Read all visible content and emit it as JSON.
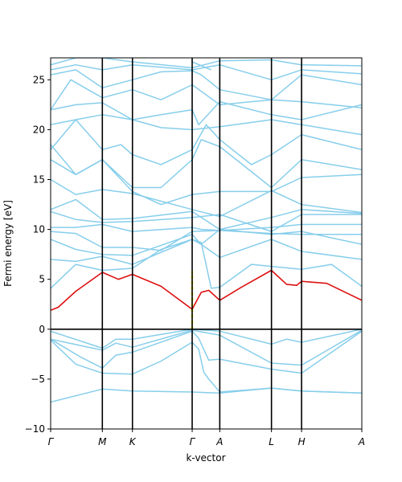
{
  "chart_data": {
    "type": "line",
    "title": "",
    "xlabel": "k-vector",
    "ylabel": "Fermi energy [eV]",
    "ylim": [
      -10,
      27.2
    ],
    "yticks": [
      -10,
      -5,
      0,
      5,
      10,
      15,
      20,
      25
    ],
    "xlim": [
      0,
      6.2
    ],
    "kpoints": [
      {
        "label": "Γ",
        "x": 0.0
      },
      {
        "label": "M",
        "x": 1.03
      },
      {
        "label": "K",
        "x": 1.63
      },
      {
        "label": "Γ",
        "x": 2.82
      },
      {
        "label": "A",
        "x": 3.37
      },
      {
        "label": "L",
        "x": 4.4
      },
      {
        "label": "H",
        "x": 5.0
      },
      {
        "label": "A",
        "x": 6.2
      }
    ],
    "fermi_level": 0,
    "colors": {
      "band": "#87ceeb",
      "highlight": "#dd1111",
      "gap": "#ffff00",
      "axis": "#000000"
    },
    "series": [
      {
        "x": [
          0,
          1.03,
          1.63,
          2.82,
          3.37,
          4.4,
          5.0,
          6.2
        ],
        "values": [
          -7.3,
          -6.0,
          -6.2,
          -6.3,
          -6.4,
          -5.9,
          -6.2,
          -6.4
        ]
      },
      {
        "x": [
          0,
          0.5,
          1.03,
          1.63,
          2.2,
          2.82,
          2.95,
          3.05,
          3.15,
          3.37,
          4.4,
          5.0,
          6.2
        ],
        "values": [
          -1.1,
          -3.5,
          -4.4,
          -4.5,
          -3.2,
          -1.3,
          -2.0,
          -4.3,
          -5.0,
          -6.3,
          -5.9,
          -6.2,
          -6.4
        ]
      },
      {
        "x": [
          0,
          0.6,
          1.03,
          1.3,
          1.63,
          2.82,
          2.95,
          3.15,
          3.37,
          4.4,
          5.0,
          6.2
        ],
        "values": [
          -1.0,
          -2.8,
          -3.9,
          -2.6,
          -2.3,
          -0.2,
          -0.9,
          -3.1,
          -3.0,
          -4.0,
          -4.4,
          -0.2
        ]
      },
      {
        "x": [
          0,
          1.03,
          1.3,
          1.63,
          2.82,
          3.37,
          4.4,
          5.0,
          6.2
        ],
        "values": [
          -1.0,
          -2.1,
          -1.4,
          -1.8,
          -0.1,
          -0.6,
          -3.4,
          -3.6,
          -0.1
        ]
      },
      {
        "x": [
          0,
          1.03,
          1.3,
          1.63,
          2.82,
          3.37,
          4.4,
          4.7,
          5.0,
          6.2
        ],
        "values": [
          -0.2,
          -1.9,
          -1.0,
          -1.0,
          0.0,
          -0.2,
          -1.5,
          -1.0,
          -1.3,
          0.0
        ]
      },
      {
        "x": [
          0,
          0.15,
          0.5,
          1.03,
          1.35,
          1.63,
          2.2,
          2.82,
          3.0,
          3.15,
          3.37,
          3.8,
          4.4,
          4.7,
          4.9,
          5.0,
          5.5,
          6.2
        ],
        "values": [
          1.9,
          2.2,
          3.8,
          5.7,
          5.0,
          5.5,
          4.3,
          2.0,
          3.7,
          3.9,
          2.9,
          4.2,
          5.9,
          4.5,
          4.4,
          4.8,
          4.6,
          2.9
        ],
        "highlight": true
      },
      {
        "x": [
          0,
          0.5,
          1.03,
          1.63,
          2.2,
          2.82,
          3.0,
          3.2,
          3.37,
          4.0,
          4.4,
          5.0,
          5.6,
          6.2
        ],
        "values": [
          4.1,
          6.5,
          5.9,
          6.1,
          8.0,
          9.0,
          8.7,
          4.1,
          4.2,
          6.5,
          6.3,
          6.0,
          6.5,
          4.3
        ]
      },
      {
        "x": [
          0,
          0.5,
          1.03,
          1.63,
          2.82,
          3.0,
          3.37,
          4.4,
          5.0,
          6.2
        ],
        "values": [
          7.0,
          6.8,
          7.3,
          6.5,
          9.0,
          8.5,
          7.2,
          9.0,
          7.8,
          7.0
        ]
      },
      {
        "x": [
          0,
          0.5,
          1.03,
          1.63,
          2.82,
          3.0,
          3.37,
          4.4,
          5.0,
          6.2
        ],
        "values": [
          9.0,
          8.0,
          7.5,
          7.4,
          9.5,
          8.5,
          10.0,
          9.5,
          9.8,
          8.5
        ]
      },
      {
        "x": [
          0,
          0.5,
          1.03,
          1.63,
          2.2,
          2.82,
          3.37,
          4.4,
          5.0,
          6.2
        ],
        "values": [
          9.8,
          9.6,
          8.2,
          8.2,
          7.9,
          9.8,
          9.9,
          9.6,
          9.5,
          9.5
        ]
      },
      {
        "x": [
          0,
          0.5,
          1.03,
          1.63,
          2.82,
          3.0,
          3.37,
          4.4,
          5.0,
          6.2
        ],
        "values": [
          10.2,
          10.2,
          10.5,
          9.8,
          10.2,
          10.0,
          9.9,
          10.2,
          10.5,
          10.5
        ]
      },
      {
        "x": [
          0,
          0.5,
          1.03,
          1.63,
          2.82,
          3.37,
          4.4,
          5.0,
          6.2
        ],
        "values": [
          11.8,
          11.0,
          10.7,
          10.8,
          11.2,
          11.5,
          9.8,
          11.5,
          11.5
        ]
      },
      {
        "x": [
          0,
          0.5,
          1.03,
          1.63,
          2.82,
          3.37,
          4.4,
          5.0,
          6.2
        ],
        "values": [
          12.0,
          13.0,
          11.0,
          11.1,
          11.8,
          10.0,
          11.2,
          12.0,
          11.6
        ]
      },
      {
        "x": [
          0,
          0.5,
          1.03,
          1.63,
          2.82,
          3.37,
          4.4,
          5.0,
          6.2
        ],
        "values": [
          15.0,
          13.5,
          14.0,
          13.6,
          12.0,
          11.3,
          13.9,
          12.5,
          11.7
        ]
      },
      {
        "x": [
          0,
          0.5,
          1.03,
          1.63,
          2.2,
          2.82,
          3.37,
          4.4,
          5.0,
          6.2
        ],
        "values": [
          17.0,
          15.5,
          17.0,
          13.8,
          12.5,
          13.5,
          13.8,
          13.8,
          15.2,
          15.5
        ]
      },
      {
        "x": [
          0,
          0.5,
          1.03,
          1.63,
          2.2,
          2.82,
          3.0,
          3.37,
          4.4,
          5.0,
          6.2
        ],
        "values": [
          18.5,
          15.5,
          17.0,
          14.2,
          14.2,
          17.0,
          19.0,
          18.3,
          14.2,
          17.0,
          16.0
        ]
      },
      {
        "x": [
          0,
          0.5,
          1.03,
          1.4,
          1.63,
          2.2,
          2.82,
          3.1,
          3.37,
          4.0,
          4.4,
          5.0,
          6.2
        ],
        "values": [
          18.0,
          21.0,
          18.0,
          18.5,
          17.5,
          16.5,
          18.0,
          20.5,
          19.0,
          16.5,
          17.5,
          19.5,
          18.0
        ]
      },
      {
        "x": [
          0,
          0.5,
          1.03,
          1.63,
          2.2,
          2.82,
          3.37,
          4.4,
          5.0,
          6.2
        ],
        "values": [
          20.5,
          21.0,
          21.5,
          21.0,
          20.2,
          20.0,
          20.3,
          21.0,
          20.5,
          19.5
        ]
      },
      {
        "x": [
          0,
          0.5,
          1.03,
          1.63,
          2.2,
          2.82,
          2.95,
          3.37,
          4.4,
          5.0,
          6.2
        ],
        "values": [
          22.0,
          22.5,
          22.7,
          21.0,
          21.5,
          22.0,
          20.5,
          22.8,
          21.5,
          21.0,
          22.5
        ]
      },
      {
        "x": [
          0,
          0.4,
          1.03,
          1.63,
          2.2,
          2.82,
          3.37,
          4.4,
          5.0,
          6.2
        ],
        "values": [
          22.0,
          25.0,
          23.2,
          24.0,
          23.0,
          24.5,
          22.5,
          23.0,
          22.8,
          22.2
        ]
      },
      {
        "x": [
          0,
          0.5,
          1.03,
          1.63,
          2.2,
          2.82,
          3.0,
          3.37,
          4.4,
          5.0,
          6.2
        ],
        "values": [
          25.5,
          26.0,
          24.2,
          25.0,
          25.8,
          25.9,
          25.5,
          24.0,
          23.0,
          25.5,
          24.5
        ]
      },
      {
        "x": [
          0,
          0.5,
          1.03,
          1.63,
          2.82,
          3.37,
          4.4,
          5.0,
          6.2
        ],
        "values": [
          26.0,
          26.5,
          26.0,
          26.5,
          26.0,
          26.5,
          25.0,
          26.0,
          25.6
        ]
      },
      {
        "x": [
          0,
          0.5,
          1.03,
          1.63,
          2.82,
          3.37,
          4.4,
          5.0,
          6.2
        ],
        "values": [
          26.5,
          27.2,
          27.2,
          26.8,
          26.2,
          26.9,
          27.0,
          26.5,
          26.4
        ]
      },
      {
        "x": [
          2.82,
          3.2
        ],
        "values": [
          26.8,
          26.0
        ]
      }
    ],
    "gap_marker": {
      "x": 2.82,
      "from": 0.0,
      "to": 5.8
    }
  }
}
